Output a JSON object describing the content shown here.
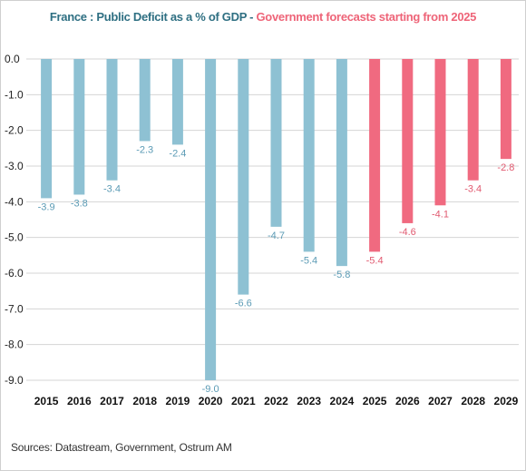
{
  "title": {
    "part1": "France : Public Deficit as a % of GDP - ",
    "part2": "Government forecasts starting from 2025"
  },
  "source": "Sources: Datastream, Government, Ostrum AM",
  "colors": {
    "actual": "#8ec1d3",
    "forecast": "#f06a80",
    "actual_label": "#5b9bb5",
    "forecast_label": "#e15a70",
    "title_main": "#2e6f82",
    "title_forecast": "#ee6478"
  },
  "chart_data": {
    "type": "bar",
    "title": "France : Public Deficit as a % of GDP - Government forecasts starting from 2025",
    "xlabel": "",
    "ylabel": "",
    "categories": [
      "2015",
      "2016",
      "2017",
      "2018",
      "2019",
      "2020",
      "2021",
      "2022",
      "2023",
      "2024",
      "2025",
      "2026",
      "2027",
      "2028",
      "2029"
    ],
    "values": [
      -3.9,
      -3.8,
      -3.4,
      -2.3,
      -2.4,
      -9.0,
      -6.6,
      -4.7,
      -5.4,
      -5.8,
      -5.4,
      -4.6,
      -4.1,
      -3.4,
      -2.8
    ],
    "forecast_from": "2025",
    "ylim": [
      -9.0,
      0.0
    ],
    "yticks": [
      "0.0",
      "-1.0",
      "-2.0",
      "-3.0",
      "-4.0",
      "-5.0",
      "-6.0",
      "-7.0",
      "-8.0",
      "-9.0"
    ],
    "data_labels": [
      "-3.9",
      "-3.8",
      "-3.4",
      "-2.3",
      "-2.4",
      "-9.0",
      "-6.6",
      "-4.7",
      "-5.4",
      "-5.8",
      "-5.4",
      "-4.6",
      "-4.1",
      "-3.4",
      "-2.8"
    ],
    "grid": true,
    "legend": "none"
  }
}
